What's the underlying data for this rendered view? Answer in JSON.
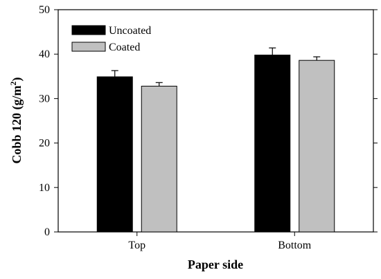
{
  "chart_data": {
    "type": "bar",
    "categories": [
      "Top",
      "Bottom"
    ],
    "series": [
      {
        "name": "Uncoated",
        "values": [
          34.9,
          39.8
        ],
        "errors": [
          1.4,
          1.6
        ],
        "color": "#000000"
      },
      {
        "name": "Coated",
        "values": [
          32.8,
          38.6
        ],
        "errors": [
          0.8,
          0.8
        ],
        "color": "#c0c0c0"
      }
    ],
    "xlabel": "Paper side",
    "ylabel": {
      "prefix": "Cobb 120 (g/m",
      "superscript": "2",
      "suffix": ")"
    },
    "ylim": [
      0,
      50
    ],
    "yticks": [
      "0",
      "10",
      "20",
      "30",
      "40",
      "50"
    ],
    "grid": false,
    "legend_position": "top-left"
  }
}
